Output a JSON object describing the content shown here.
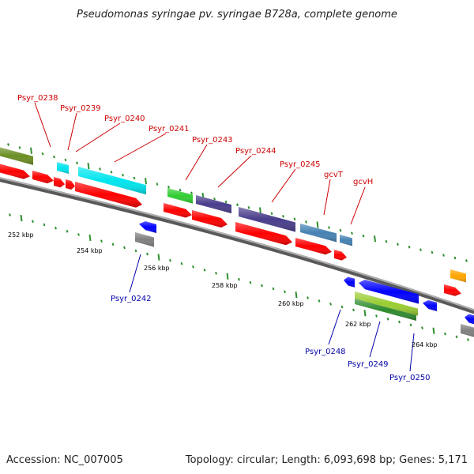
{
  "title": "Pseudomonas syringae pv. syringae B728a, complete genome",
  "footer": {
    "accession": "Accession: NC_007005",
    "summary": "Topology: circular; Length: 6,093,698 bp; Genes: 5,171"
  },
  "colors": {
    "backbone": "#808080",
    "tick": "#2f8f2f",
    "label_forward": "#cc0000",
    "label_reverse": "#0000aa",
    "cds": "#ff0000",
    "leader": "#cc0000",
    "leader_reverse": "#0000aa"
  },
  "scale_labels": [
    "252 kbp",
    "254 kbp",
    "256 kbp",
    "258 kbp",
    "260 kbp",
    "262 kbp",
    "264 kbp"
  ],
  "gene_labels_forward": [
    "Psyr_0238",
    "Psyr_0239",
    "Psyr_0240",
    "Psyr_0241",
    "Psyr_0243",
    "Psyr_0244",
    "Psyr_0245",
    "gcvT",
    "gcvH"
  ],
  "gene_labels_reverse": [
    "Psyr_0242",
    "Psyr_0248",
    "Psyr_0249",
    "Psyr_0250"
  ],
  "cog_colors": [
    "#6b8e23",
    "#00e5ee",
    "#32cd32",
    "#483d8b",
    "#4682b4",
    "#ffa500",
    "#0000ff",
    "#9acd32",
    "#808080"
  ]
}
